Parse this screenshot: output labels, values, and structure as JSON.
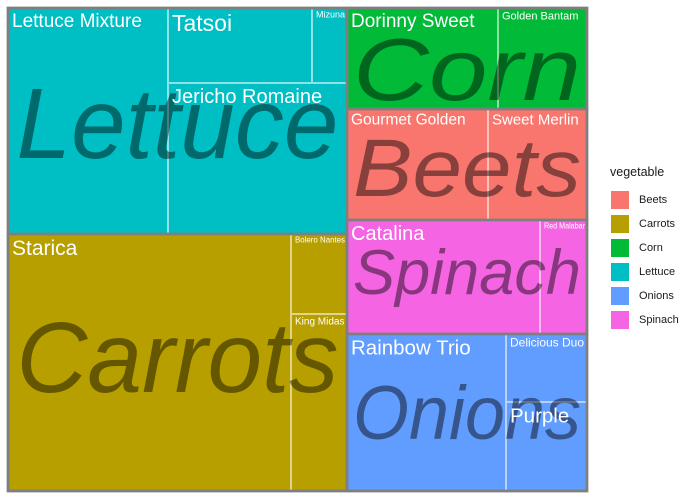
{
  "chart_data": {
    "type": "treemap",
    "legend_title": "vegetable",
    "legend_position": "right",
    "groups": [
      {
        "name": "Lettuce",
        "color": "#00BFC4",
        "items": [
          {
            "name": "Lettuce Mixture",
            "value": 28
          },
          {
            "name": "Jericho Romaine",
            "value": 28
          },
          {
            "name": "Tatsoi",
            "value": 16
          },
          {
            "name": "Mizuna",
            "value": 4
          }
        ]
      },
      {
        "name": "Carrots",
        "color": "#B79F00",
        "items": [
          {
            "name": "Starica",
            "value": 65
          },
          {
            "name": "King Midas",
            "value": 8
          },
          {
            "name": "Bolero Nantes",
            "value": 7
          }
        ]
      },
      {
        "name": "Corn",
        "color": "#00BA38",
        "items": [
          {
            "name": "Dorinny Sweet",
            "value": 16
          },
          {
            "name": "Golden Bantam",
            "value": 9
          }
        ]
      },
      {
        "name": "Beets",
        "color": "#F8766D",
        "items": [
          {
            "name": "Gourmet Golden",
            "value": 16
          },
          {
            "name": "Sweet Merlin",
            "value": 11
          }
        ]
      },
      {
        "name": "Spinach",
        "color": "#F564E3",
        "items": [
          {
            "name": "Catalina",
            "value": 23
          },
          {
            "name": "Red Malabar",
            "value": 5
          }
        ]
      },
      {
        "name": "Onions",
        "color": "#619CFF",
        "items": [
          {
            "name": "Rainbow Trio",
            "value": 27
          },
          {
            "name": "Delicious Duo",
            "value": 13
          },
          {
            "name": "Purple",
            "value": 13
          }
        ]
      }
    ],
    "legend": [
      "Beets",
      "Carrots",
      "Corn",
      "Lettuce",
      "Onions",
      "Spinach"
    ]
  }
}
